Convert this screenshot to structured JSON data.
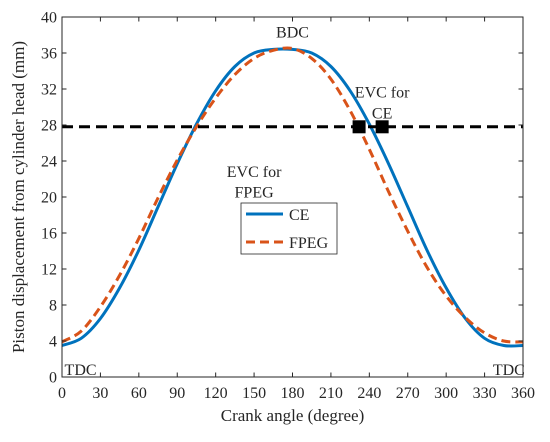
{
  "chart_data": {
    "type": "line",
    "xlabel": "Crank angle (degree)",
    "ylabel": "Piston displacement from cylinder head (mm)",
    "xlim": [
      0,
      360
    ],
    "ylim": [
      0,
      40
    ],
    "xticks": [
      0,
      30,
      60,
      90,
      120,
      150,
      180,
      210,
      240,
      270,
      300,
      330,
      360
    ],
    "yticks": [
      0,
      4,
      8,
      12,
      16,
      20,
      24,
      28,
      32,
      36,
      40
    ],
    "grid": false,
    "legend_position": "center",
    "series": [
      {
        "name": "CE",
        "color": "#0072BD",
        "style": "solid",
        "x": [
          0,
          15,
          30,
          45,
          60,
          75,
          90,
          105,
          120,
          135,
          150,
          165,
          180,
          195,
          210,
          225,
          240,
          255,
          270,
          285,
          300,
          315,
          330,
          345,
          360
        ],
        "y": [
          3.5,
          4.3,
          6.5,
          9.9,
          14.1,
          18.9,
          23.7,
          28.1,
          31.8,
          34.5,
          36.0,
          36.4,
          36.4,
          36.0,
          34.5,
          31.8,
          28.1,
          23.7,
          18.9,
          14.1,
          9.9,
          6.5,
          4.3,
          3.5,
          3.5
        ]
      },
      {
        "name": "FPEG",
        "color": "#D95319",
        "style": "dashed",
        "x": [
          0,
          15,
          30,
          45,
          60,
          75,
          90,
          105,
          120,
          135,
          150,
          165,
          180,
          195,
          210,
          225,
          240,
          255,
          270,
          285,
          300,
          315,
          330,
          345,
          360
        ],
        "y": [
          3.9,
          5.1,
          7.8,
          11.3,
          15.4,
          19.9,
          24.1,
          27.8,
          31.0,
          33.6,
          35.4,
          36.3,
          36.5,
          35.4,
          33.1,
          29.6,
          25.3,
          20.6,
          16.2,
          12.2,
          9.0,
          6.6,
          4.9,
          4.0,
          3.9
        ]
      }
    ],
    "reference_line": {
      "y": 27.8,
      "color": "#000000",
      "style": "dashed"
    },
    "markers": [
      {
        "x": 232,
        "y": 27.8
      },
      {
        "x": 250,
        "y": 27.8
      }
    ],
    "annotations": [
      {
        "text": "BDC",
        "x": 180,
        "y": 38.3
      },
      {
        "text": "EVC for",
        "x": 250,
        "y": 31.6
      },
      {
        "text": "CE",
        "x": 250,
        "y": 29.3
      },
      {
        "text": "EVC for",
        "x": 150,
        "y": 22.8
      },
      {
        "text": "FPEG",
        "x": 150,
        "y": 20.5
      },
      {
        "text": "TDC",
        "x": 2,
        "y": 0.8
      },
      {
        "text": "TDC",
        "x": 338,
        "y": 0.8
      }
    ]
  }
}
